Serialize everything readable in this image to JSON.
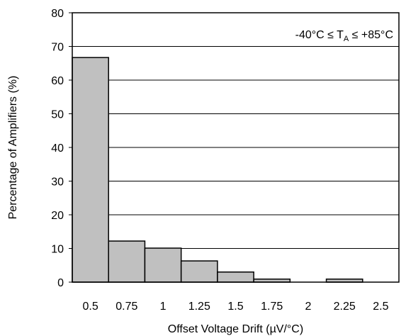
{
  "chart_data": {
    "type": "bar",
    "title": "",
    "xlabel": "Offset Voltage Drift (µV/°C)",
    "ylabel": "Percentage of Amplifiers (%)",
    "annotation": {
      "prefix": "-40°C ≤ T",
      "subscript": "A",
      "suffix": " ≤ +85°C"
    },
    "categories": [
      "0.5",
      "0.75",
      "1",
      "1.25",
      "1.5",
      "1.75",
      "2",
      "2.25",
      "2.5"
    ],
    "values": [
      66.7,
      12.2,
      10.1,
      6.3,
      3.0,
      0.9,
      0.0,
      0.9,
      0.0
    ],
    "ylim": [
      0,
      80
    ],
    "yticks": [
      "0",
      "10",
      "20",
      "30",
      "40",
      "50",
      "60",
      "70",
      "80"
    ],
    "grid": true,
    "legend": "none",
    "colors": {
      "bar_fill": "#c0c0c0",
      "bar_stroke": "#000000",
      "grid": "#000000"
    }
  }
}
